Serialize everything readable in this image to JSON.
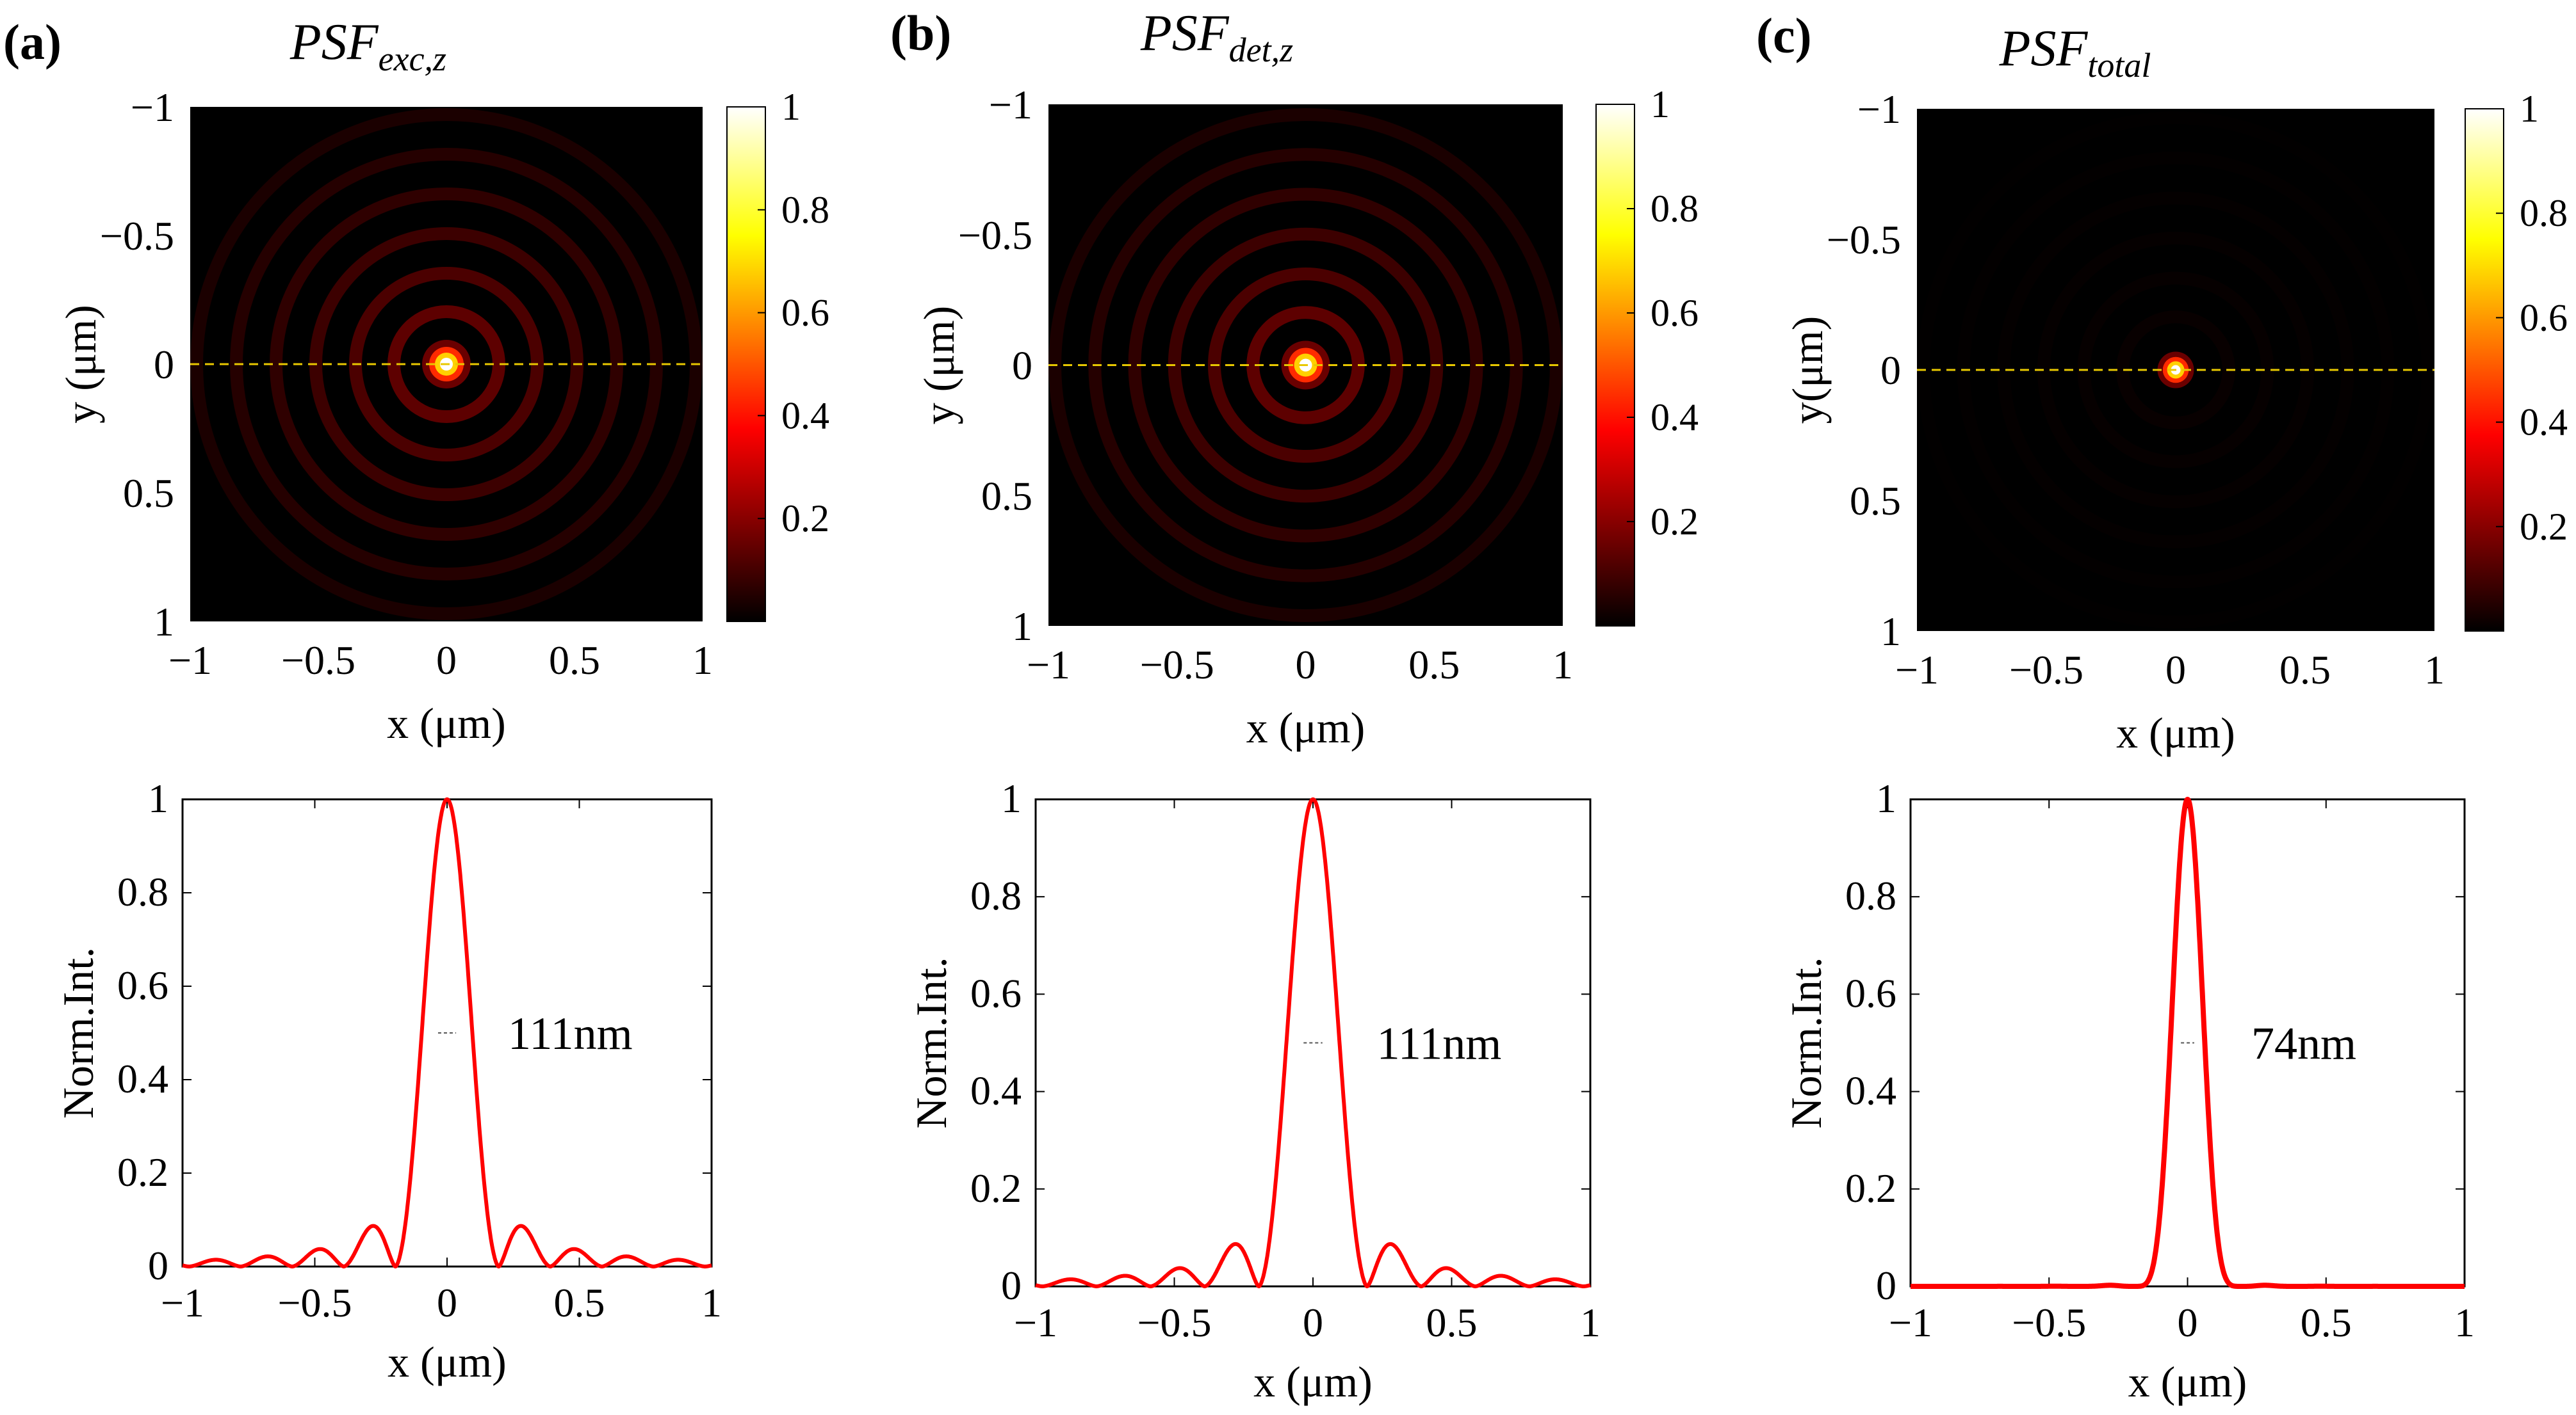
{
  "figure": {
    "panels": [
      {
        "letter": "(a)",
        "title_main": "PSF",
        "title_sub": "exc,z",
        "image": {
          "xlabel": "x (μm)",
          "ylabel": "y (μm)",
          "xticks": [
            "−1",
            "−0.5",
            "0",
            "0.5",
            "1"
          ],
          "yticks": [
            "−1",
            "−0.5",
            "0",
            "0.5",
            "1"
          ],
          "colorbar_ticks": [
            "1",
            "0.8",
            "0.6",
            "0.4",
            "0.2"
          ],
          "ring_strength": 0.9
        },
        "profile": {
          "xlabel": "x (μm)",
          "ylabel": "Norm.Int.",
          "xticks": [
            "−1",
            "−0.5",
            "0",
            "0.5",
            "1"
          ],
          "yticks": [
            "1",
            "0.8",
            "0.6",
            "0.4",
            "0.2",
            "0"
          ],
          "fwhm_label": "111nm"
        }
      },
      {
        "letter": "(b)",
        "title_main": "PSF",
        "title_sub": "det,z",
        "image": {
          "xlabel": "x (μm)",
          "ylabel": "y (μm)",
          "xticks": [
            "−1",
            "−0.5",
            "0",
            "0.5",
            "1"
          ],
          "yticks": [
            "−1",
            "−0.5",
            "0",
            "0.5",
            "1"
          ],
          "colorbar_ticks": [
            "1",
            "0.8",
            "0.6",
            "0.4",
            "0.2"
          ],
          "ring_strength": 0.9
        },
        "profile": {
          "xlabel": "x (μm)",
          "ylabel": "Norm.Int.",
          "xticks": [
            "−1",
            "−0.5",
            "0",
            "0.5",
            "1"
          ],
          "yticks": [
            "1",
            "0.8",
            "0.6",
            "0.4",
            "0.2",
            "0"
          ],
          "fwhm_label": "111nm"
        }
      },
      {
        "letter": "(c)",
        "title_main": "PSF",
        "title_sub": "total",
        "image": {
          "xlabel": "x (μm)",
          "ylabel": "y(μm)",
          "xticks": [
            "−1",
            "−0.5",
            "0",
            "0.5",
            "1"
          ],
          "yticks": [
            "−1",
            "−0.5",
            "0",
            "0.5",
            "1"
          ],
          "colorbar_ticks": [
            "1",
            "0.8",
            "0.6",
            "0.4",
            "0.2"
          ],
          "ring_strength": 0.08
        },
        "profile": {
          "xlabel": "x (μm)",
          "ylabel": "Norm.Int.",
          "xticks": [
            "−1",
            "−0.5",
            "0",
            "0.5",
            "1"
          ],
          "yticks": [
            "1",
            "0.8",
            "0.6",
            "0.4",
            "0.2",
            "0"
          ],
          "fwhm_label": "74nm"
        }
      }
    ]
  },
  "chart_data": [
    {
      "type": "heatmap",
      "title": "PSF exc,z",
      "xlabel": "x (μm)",
      "ylabel": "y (μm)",
      "xlim": [
        -1,
        1
      ],
      "ylim": [
        -1,
        1
      ],
      "colormap": "hot",
      "clim": [
        0,
        1
      ],
      "annotations": [
        "dashed yellow line at y = 0"
      ]
    },
    {
      "type": "line",
      "title": "PSF exc,z profile",
      "xlabel": "x (μm)",
      "ylabel": "Norm.Int.",
      "xlim": [
        -1,
        1
      ],
      "ylim": [
        0,
        1
      ],
      "series": [
        {
          "name": "PSF exc,z profile",
          "x": [
            -1,
            -0.93,
            -0.86,
            -0.78,
            -0.7,
            -0.62,
            -0.52,
            -0.42,
            -0.34,
            -0.27,
            -0.18,
            -0.12,
            -0.06,
            0,
            0.06,
            0.12,
            0.18,
            0.27,
            0.34,
            0.42,
            0.52,
            0.62,
            0.7,
            0.78,
            0.86,
            0.93,
            1
          ],
          "values": [
            0.01,
            0.0,
            0.02,
            0.0,
            0.03,
            0.0,
            0.05,
            0.0,
            0.08,
            0.0,
            0.16,
            0.0,
            0.5,
            1.0,
            0.5,
            0.0,
            0.16,
            0.0,
            0.08,
            0.0,
            0.05,
            0.0,
            0.03,
            0.0,
            0.02,
            0.0,
            0.01
          ]
        }
      ],
      "annotations": [
        "FWHM 111nm"
      ]
    },
    {
      "type": "heatmap",
      "title": "PSF det,z",
      "xlabel": "x (μm)",
      "ylabel": "y (μm)",
      "xlim": [
        -1,
        1
      ],
      "ylim": [
        -1,
        1
      ],
      "colormap": "hot",
      "clim": [
        0,
        1
      ],
      "annotations": [
        "dashed yellow line at y = 0"
      ]
    },
    {
      "type": "line",
      "title": "PSF det,z profile",
      "xlabel": "x (μm)",
      "ylabel": "Norm.Int.",
      "xlim": [
        -1,
        1
      ],
      "ylim": [
        0,
        1
      ],
      "series": [
        {
          "name": "PSF det,z profile",
          "x": [
            -1,
            -0.93,
            -0.86,
            -0.78,
            -0.7,
            -0.62,
            -0.52,
            -0.42,
            -0.34,
            -0.27,
            -0.18,
            -0.12,
            -0.06,
            0,
            0.06,
            0.12,
            0.18,
            0.27,
            0.34,
            0.42,
            0.52,
            0.62,
            0.7,
            0.78,
            0.86,
            0.93,
            1
          ],
          "values": [
            0.01,
            0.0,
            0.02,
            0.0,
            0.03,
            0.0,
            0.05,
            0.0,
            0.08,
            0.0,
            0.16,
            0.0,
            0.5,
            1.0,
            0.5,
            0.0,
            0.16,
            0.0,
            0.08,
            0.0,
            0.05,
            0.0,
            0.03,
            0.0,
            0.02,
            0.0,
            0.01
          ]
        }
      ],
      "annotations": [
        "FWHM 111nm"
      ]
    },
    {
      "type": "heatmap",
      "title": "PSF total",
      "xlabel": "x (μm)",
      "ylabel": "y(μm)",
      "xlim": [
        -1,
        1
      ],
      "ylim": [
        -1,
        1
      ],
      "colormap": "hot",
      "clim": [
        0,
        1
      ],
      "annotations": [
        "dashed yellow line at y = 0"
      ]
    },
    {
      "type": "line",
      "title": "PSF total profile",
      "xlabel": "x (μm)",
      "ylabel": "Norm.Int.",
      "xlim": [
        -1,
        1
      ],
      "ylim": [
        0,
        1
      ],
      "series": [
        {
          "name": "PSF total profile",
          "x": [
            -1,
            -0.3,
            -0.2,
            -0.14,
            -0.1,
            -0.04,
            0,
            0.04,
            0.1,
            0.14,
            0.2,
            0.3,
            1
          ],
          "values": [
            0.0,
            0.005,
            0.025,
            0.0,
            0.01,
            0.5,
            1.0,
            0.5,
            0.01,
            0.0,
            0.025,
            0.005,
            0.0
          ]
        }
      ],
      "annotations": [
        "FWHM 74nm"
      ]
    }
  ]
}
